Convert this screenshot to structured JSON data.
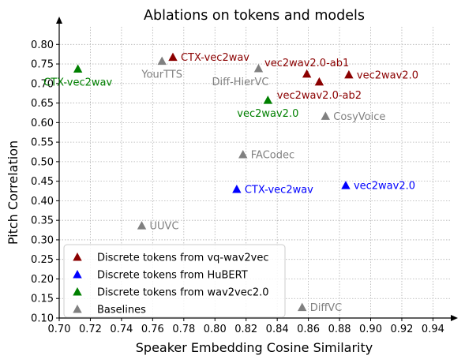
{
  "chart_data": {
    "type": "scatter",
    "title": "Ablations on tokens and models",
    "xlabel": "Speaker Embedding Cosine Similarity",
    "ylabel": "Pitch Correlation",
    "xlim": [
      0.7,
      0.955
    ],
    "ylim": [
      0.1,
      0.845
    ],
    "x_ticks": [
      "0.70",
      "0.72",
      "0.74",
      "0.76",
      "0.78",
      "0.80",
      "0.82",
      "0.84",
      "0.86",
      "0.88",
      "0.90",
      "0.92",
      "0.94"
    ],
    "y_ticks": [
      "0.10",
      "0.15",
      "0.20",
      "0.25",
      "0.30",
      "0.35",
      "0.40",
      "0.45",
      "0.50",
      "0.55",
      "0.60",
      "0.65",
      "0.70",
      "0.75",
      "0.80"
    ],
    "grid": true,
    "legend_position": "lower-left",
    "series": [
      {
        "name": "Discrete tokens from vq-wav2vec",
        "color": "#8b0000",
        "marker": "triangle",
        "points": [
          {
            "x": 0.773,
            "y": 0.767,
            "label": "CTX-vec2wav",
            "label_pos": "right"
          },
          {
            "x": 0.859,
            "y": 0.724,
            "label": "vec2wav2.0-ab1",
            "label_pos": "above"
          },
          {
            "x": 0.867,
            "y": 0.704,
            "label": "vec2wav2.0-ab2",
            "label_pos": "below"
          },
          {
            "x": 0.886,
            "y": 0.722,
            "label": "vec2wav2.0",
            "label_pos": "right"
          }
        ]
      },
      {
        "name": "Discrete tokens from HuBERT",
        "color": "#0000ff",
        "marker": "triangle",
        "points": [
          {
            "x": 0.814,
            "y": 0.429,
            "label": "CTX-vec2wav",
            "label_pos": "right"
          },
          {
            "x": 0.884,
            "y": 0.439,
            "label": "vec2wav2.0",
            "label_pos": "right"
          }
        ]
      },
      {
        "name": "Discrete tokens from wav2vec2.0",
        "color": "#008000",
        "marker": "triangle",
        "points": [
          {
            "x": 0.712,
            "y": 0.737,
            "label": "CTX-vec2wav",
            "label_pos": "below"
          },
          {
            "x": 0.834,
            "y": 0.657,
            "label": "vec2wav2.0",
            "label_pos": "below"
          }
        ]
      },
      {
        "name": "Baselines",
        "color": "#808080",
        "marker": "triangle",
        "points": [
          {
            "x": 0.766,
            "y": 0.757,
            "label": "YourTTS",
            "label_pos": "below"
          },
          {
            "x": 0.828,
            "y": 0.738,
            "label": "Diff-HierVC",
            "label_pos": "below-left"
          },
          {
            "x": 0.871,
            "y": 0.616,
            "label": "CosyVoice",
            "label_pos": "right"
          },
          {
            "x": 0.818,
            "y": 0.518,
            "label": "FACodec",
            "label_pos": "right"
          },
          {
            "x": 0.753,
            "y": 0.336,
            "label": "UUVC",
            "label_pos": "right"
          },
          {
            "x": 0.856,
            "y": 0.127,
            "label": "DiffVC",
            "label_pos": "right"
          }
        ]
      }
    ]
  }
}
